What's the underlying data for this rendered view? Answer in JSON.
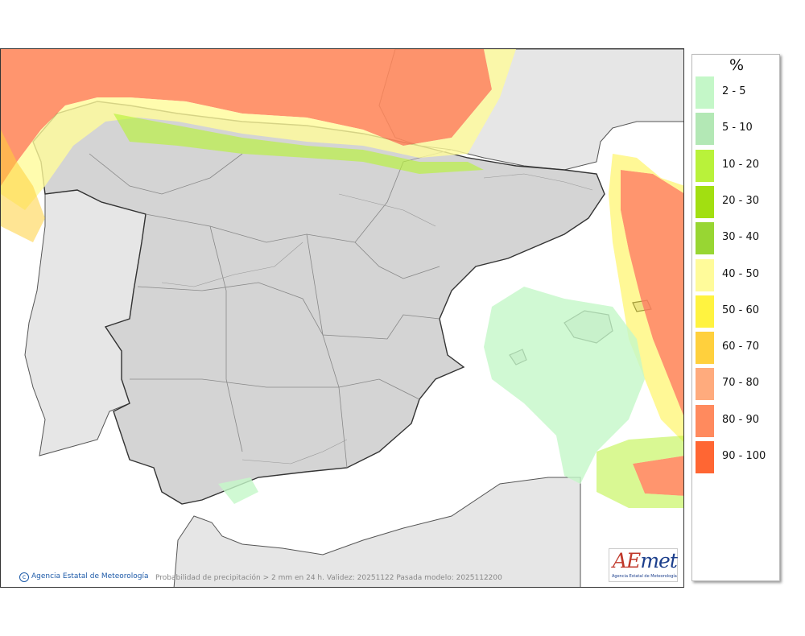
{
  "legend": {
    "unit": "%",
    "items": [
      {
        "label": "2 - 5",
        "color": "#c4f7c8"
      },
      {
        "label": "5 - 10",
        "color": "#b3e8b5"
      },
      {
        "label": "10 - 20",
        "color": "#b9f23a"
      },
      {
        "label": "20 - 30",
        "color": "#a2df11"
      },
      {
        "label": "30 - 40",
        "color": "#98d633"
      },
      {
        "label": "40 - 50",
        "color": "#fffb9a"
      },
      {
        "label": "50 - 60",
        "color": "#fff340"
      },
      {
        "label": "60 - 70",
        "color": "#ffd03d"
      },
      {
        "label": "70 - 80",
        "color": "#ffab7d"
      },
      {
        "label": "80 - 90",
        "color": "#ff8a5e"
      },
      {
        "label": "90 - 100",
        "color": "#ff6633"
      }
    ]
  },
  "credit": "Agencia Estatal de Meteorología",
  "caption": "Probabilidad de precipitación > 2 mm en 24 h. Validez: 20251122 Pasada modelo: 2025112200",
  "logo": {
    "brand_a": "AE",
    "brand_b": "met",
    "subtitle": "Agencia Estatal de Meteorología"
  }
}
